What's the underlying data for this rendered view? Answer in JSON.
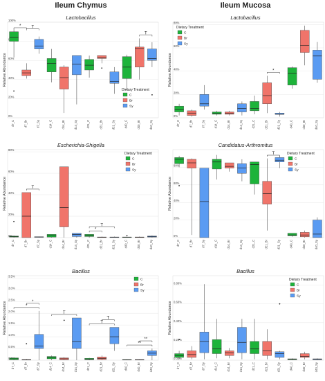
{
  "figure": {
    "column_titles": [
      "Ileum Chymus",
      "Ileum Mucosa"
    ]
  },
  "colors": {
    "C": "#1db33a",
    "Br": "#f0746a",
    "Sy": "#5a9bf2",
    "grid": "#e8e8e8",
    "box_stroke": "#333333"
  },
  "chart_data": [
    {
      "type": "box",
      "title": "Lactobacillus",
      "ylabel": "Relative Abundance",
      "yticks": [
        "0%",
        "20%",
        "40%",
        "60%",
        "80%",
        "100%"
      ],
      "ytick_values": [
        0,
        20,
        40,
        60,
        80,
        100
      ],
      "ylim": [
        0,
        100
      ],
      "legend": {
        "title": "Dietary Treatment",
        "labels": [
          "C",
          "Br",
          "Sy"
        ],
        "placement": "bottom-right"
      },
      "categories": [
        "d7_C",
        "d7_Br",
        "d7_Sy",
        "d14_C",
        "d14_Br",
        "d14_Sy",
        "d21_C",
        "d21_Br",
        "d21_Sy",
        "d40_C",
        "d40_Br",
        "d40_Sy"
      ],
      "groups": [
        "C",
        "Br",
        "Sy",
        "C",
        "Br",
        "Sy",
        "C",
        "Br",
        "Sy",
        "C",
        "Br",
        "Sy"
      ],
      "boxes": [
        {
          "min": 63,
          "q1": 80,
          "median": 84,
          "q3": 90,
          "max": 93,
          "outliers": [
            28
          ]
        },
        {
          "min": 41,
          "q1": 44,
          "median": 47,
          "q3": 50,
          "max": 57,
          "outliers": []
        },
        {
          "min": 67,
          "q1": 72,
          "median": 75,
          "q3": 82,
          "max": 85,
          "outliers": []
        },
        {
          "min": 37,
          "q1": 48,
          "median": 57,
          "q3": 62,
          "max": 72,
          "outliers": []
        },
        {
          "min": 5,
          "q1": 30,
          "median": 42,
          "q3": 53,
          "max": 55,
          "outliers": []
        },
        {
          "min": 14,
          "q1": 45,
          "median": 56,
          "q3": 65,
          "max": 65,
          "outliers": []
        },
        {
          "min": 42,
          "q1": 50,
          "median": 55,
          "q3": 61,
          "max": 65,
          "outliers": []
        },
        {
          "min": 57,
          "q1": 62,
          "median": 63,
          "q3": 65,
          "max": 65,
          "outliers": [
            52
          ]
        },
        {
          "min": 25,
          "q1": 36,
          "median": 38,
          "q3": 48,
          "max": 53,
          "outliers": []
        },
        {
          "min": 29,
          "q1": 41,
          "median": 53,
          "q3": 64,
          "max": 66,
          "outliers": []
        },
        {
          "min": 40,
          "q1": 53,
          "median": 72,
          "q3": 74,
          "max": 83,
          "outliers": []
        },
        {
          "min": 53,
          "q1": 60,
          "median": 62,
          "q3": 72,
          "max": 79,
          "outliers": [
            24
          ]
        }
      ],
      "significance": [
        {
          "from": 0,
          "to": 1,
          "label": "*"
        },
        {
          "from": 1,
          "to": 2,
          "label": "T"
        },
        {
          "from": 10,
          "to": 11,
          "label": "T"
        }
      ]
    },
    {
      "type": "box",
      "title": "Lactobacillus",
      "ylabel": "Relative Abundance",
      "yticks": [
        "0%",
        "20%",
        "40%",
        "60%",
        "80%"
      ],
      "ytick_values": [
        0,
        20,
        40,
        60,
        80
      ],
      "ylim": [
        0,
        82
      ],
      "legend": {
        "title": "Dietary Treatment",
        "labels": [
          "C",
          "Br",
          "Sy"
        ],
        "placement": "top-left"
      },
      "categories": [
        "d7_C",
        "d7_Br",
        "d7_Sy",
        "d14_C",
        "d14_Br",
        "d14_Sy",
        "d21_C",
        "d21_Br",
        "d21_Sy",
        "d40_C",
        "d40_Br",
        "d40_Sy"
      ],
      "groups": [
        "C",
        "Br",
        "Sy",
        "C",
        "Br",
        "Sy",
        "C",
        "Br",
        "Sy",
        "C",
        "Br",
        "Sy"
      ],
      "boxes": [
        {
          "min": 2,
          "q1": 5,
          "median": 7,
          "q3": 10,
          "max": 12,
          "outliers": []
        },
        {
          "min": 1,
          "q1": 2,
          "median": 4,
          "q3": 6,
          "max": 7,
          "outliers": []
        },
        {
          "min": 7,
          "q1": 10,
          "median": 12,
          "q3": 20,
          "max": 28,
          "outliers": []
        },
        {
          "min": 2,
          "q1": 3,
          "median": 4,
          "q3": 5,
          "max": 6,
          "outliers": []
        },
        {
          "min": 2,
          "q1": 3,
          "median": 4,
          "q3": 5,
          "max": 6,
          "outliers": []
        },
        {
          "min": 2,
          "q1": 5,
          "median": 8,
          "q3": 12,
          "max": 14,
          "outliers": []
        },
        {
          "min": 3,
          "q1": 6,
          "median": 8,
          "q3": 14,
          "max": 19,
          "outliers": []
        },
        {
          "min": 4,
          "q1": 12,
          "median": 19,
          "q3": 30,
          "max": 36,
          "outliers": []
        },
        {
          "min": 1,
          "q1": 3,
          "median": 3,
          "q3": 4,
          "max": 5,
          "outliers": []
        },
        {
          "min": 25,
          "q1": 28,
          "median": 38,
          "q3": 43,
          "max": 44,
          "outliers": []
        },
        {
          "min": 45,
          "q1": 56,
          "median": 62,
          "q3": 75,
          "max": 79,
          "outliers": []
        },
        {
          "min": 30,
          "q1": 33,
          "median": 53,
          "q3": 58,
          "max": 65,
          "outliers": []
        }
      ],
      "significance": [
        {
          "from": 7,
          "to": 8,
          "label": "*"
        }
      ]
    },
    {
      "type": "box",
      "title": "Escherichia-Shigella",
      "ylabel": "Relative Abundance",
      "yticks": [
        "0%",
        "20%",
        "40%",
        "60%",
        "80%"
      ],
      "ytick_values": [
        0,
        20,
        40,
        60,
        80
      ],
      "ylim": [
        0,
        82
      ],
      "legend": {
        "title": "Dietary Treatment",
        "labels": [
          "C",
          "Br",
          "Sy"
        ],
        "placement": "top-right"
      },
      "categories": [
        "d7_C",
        "d7_Br",
        "d7_Sy",
        "d14_C",
        "d14_Br",
        "d14_Sy",
        "d21_C",
        "d21_Br",
        "d21_Sy",
        "d40_C",
        "d40_Br",
        "d40_Sy"
      ],
      "groups": [
        "C",
        "Br",
        "Sy",
        "C",
        "Br",
        "Sy",
        "C",
        "Br",
        "Sy",
        "C",
        "Br",
        "Sy"
      ],
      "boxes": [
        {
          "min": 0,
          "q1": 0.5,
          "median": 1,
          "q3": 1.5,
          "max": 2,
          "outliers": [
            15
          ]
        },
        {
          "min": 0,
          "q1": 0,
          "median": 20,
          "q3": 42,
          "max": 42,
          "outliers": []
        },
        {
          "min": 0,
          "q1": 0.3,
          "median": 0.6,
          "q3": 0.8,
          "max": 1,
          "outliers": []
        },
        {
          "min": 0,
          "q1": 0.5,
          "median": 1.5,
          "q3": 3,
          "max": 3,
          "outliers": []
        },
        {
          "min": 0,
          "q1": 10,
          "median": 28,
          "q3": 66,
          "max": 66,
          "outliers": []
        },
        {
          "min": 0,
          "q1": 1,
          "median": 3,
          "q3": 4,
          "max": 4,
          "outliers": []
        },
        {
          "min": 0,
          "q1": 1,
          "median": 2,
          "q3": 3,
          "max": 3,
          "outliers": []
        },
        {
          "min": 0,
          "q1": 0.2,
          "median": 0.4,
          "q3": 0.6,
          "max": 1,
          "outliers": []
        },
        {
          "min": 0,
          "q1": 0.2,
          "median": 0.4,
          "q3": 0.6,
          "max": 1,
          "outliers": []
        },
        {
          "min": 0,
          "q1": 0.2,
          "median": 0.4,
          "q3": 0.6,
          "max": 1,
          "outliers": [
            2
          ]
        },
        {
          "min": 0,
          "q1": 0.2,
          "median": 0.4,
          "q3": 0.6,
          "max": 1,
          "outliers": []
        },
        {
          "min": 0,
          "q1": 0.5,
          "median": 1,
          "q3": 1.5,
          "max": 2,
          "outliers": []
        }
      ],
      "significance": [
        {
          "from": 1,
          "to": 2,
          "label": "T"
        },
        {
          "from": 6,
          "to": 7,
          "label": "*"
        },
        {
          "from": 6,
          "to": 8,
          "label": "T"
        }
      ]
    },
    {
      "type": "box",
      "title": "Candidatus-Arthromitus",
      "ylabel": "Relative Abundance",
      "yticks": [
        "0%",
        "20%",
        "40%",
        "60%",
        "80%"
      ],
      "ytick_values": [
        0,
        20,
        40,
        60,
        80
      ],
      "ylim": [
        0,
        100
      ],
      "legend": {
        "title": "Dietary Treatment",
        "labels": [
          "C",
          "Br",
          "Sy"
        ],
        "placement": "top-right"
      },
      "categories": [
        "d7_C",
        "d7_Br",
        "d7_Sy",
        "d14_C",
        "d14_Br",
        "d14_Sy",
        "d21_C",
        "d21_Br",
        "d21_Sy",
        "d40_C",
        "d40_Br",
        "d40_Sy"
      ],
      "groups": [
        "C",
        "Br",
        "Sy",
        "C",
        "Br",
        "Sy",
        "C",
        "Br",
        "Sy",
        "C",
        "Br",
        "Sy"
      ],
      "boxes": [
        {
          "min": 80,
          "q1": 84,
          "median": 89,
          "q3": 91,
          "max": 93,
          "outliers": [
            59
          ]
        },
        {
          "min": 3,
          "q1": 79,
          "median": 85,
          "q3": 89,
          "max": 90,
          "outliers": []
        },
        {
          "min": 0,
          "q1": 0,
          "median": 41,
          "q3": 79,
          "max": 79,
          "outliers": []
        },
        {
          "min": 66,
          "q1": 78,
          "median": 86,
          "q3": 89,
          "max": 94,
          "outliers": []
        },
        {
          "min": 75,
          "q1": 79,
          "median": 81,
          "q3": 85,
          "max": 85,
          "outliers": []
        },
        {
          "min": 64,
          "q1": 73,
          "median": 79,
          "q3": 84,
          "max": 89,
          "outliers": []
        },
        {
          "min": 49,
          "q1": 61,
          "median": 83,
          "q3": 86,
          "max": 86,
          "outliers": []
        },
        {
          "min": 8,
          "q1": 38,
          "median": 50,
          "q3": 64,
          "max": 90,
          "outliers": []
        },
        {
          "min": 79,
          "q1": 86,
          "median": 88,
          "q3": 91,
          "max": 93,
          "outliers": []
        },
        {
          "min": 1,
          "q1": 2,
          "median": 3,
          "q3": 5,
          "max": 5,
          "outliers": []
        },
        {
          "min": 0,
          "q1": 1,
          "median": 3,
          "q3": 6,
          "max": 8,
          "outliers": []
        },
        {
          "min": 0,
          "q1": 0,
          "median": 4,
          "q3": 20,
          "max": 23,
          "outliers": []
        }
      ],
      "significance": [
        {
          "from": 7,
          "to": 8,
          "label": "T"
        }
      ]
    },
    {
      "type": "box",
      "title": "Bacillus",
      "ylabel": "Relative Abundance",
      "yticks": [
        "0.0%",
        "0.5%",
        "1.0%",
        "1.5%",
        "2.0%",
        "2.5%",
        "3.0%",
        "3.5%"
      ],
      "ytick_values": [
        0,
        0.5,
        1.0,
        1.5,
        2.0,
        2.5,
        3.0,
        3.5
      ],
      "ylim": [
        0,
        3.6
      ],
      "legend": {
        "title": "",
        "labels": [
          "C",
          "Br",
          "Sy"
        ],
        "placement": "top-right"
      },
      "categories": [
        "d7_C",
        "d7_Br",
        "d7_Sy",
        "d14_C",
        "d14_Br",
        "d14_Sy",
        "d21_C",
        "d21_Br",
        "d21_Sy",
        "d40_C",
        "d40_Br",
        "d40_Sy"
      ],
      "groups": [
        "C",
        "Br",
        "Sy",
        "C",
        "Br",
        "Sy",
        "C",
        "Br",
        "Sy",
        "C",
        "Br",
        "Sy"
      ],
      "boxes": [
        {
          "min": 0,
          "q1": 0.02,
          "median": 0.06,
          "q3": 0.1,
          "max": 0.12,
          "outliers": []
        },
        {
          "min": 0,
          "q1": 0.01,
          "median": 0.02,
          "q3": 0.03,
          "max": 0.05,
          "outliers": [
            0.7
          ]
        },
        {
          "min": 0,
          "q1": 0.5,
          "median": 0.6,
          "q3": 1.1,
          "max": 2.1,
          "outliers": []
        },
        {
          "min": 0,
          "q1": 0.06,
          "median": 0.12,
          "q3": 0.16,
          "max": 0.2,
          "outliers": []
        },
        {
          "min": 0,
          "q1": 0.02,
          "median": 0.06,
          "q3": 0.1,
          "max": 0.13,
          "outliers": [
            1.7
          ]
        },
        {
          "min": 0,
          "q1": 0.5,
          "median": 0.8,
          "q3": 1.8,
          "max": 1.8,
          "outliers": []
        },
        {
          "min": 0,
          "q1": 0.02,
          "median": 0.05,
          "q3": 0.08,
          "max": 0.1,
          "outliers": []
        },
        {
          "min": 0,
          "q1": 0.03,
          "median": 0.08,
          "q3": 0.14,
          "max": 0.2,
          "outliers": []
        },
        {
          "min": 0.4,
          "q1": 0.7,
          "median": 1.0,
          "q3": 1.4,
          "max": 1.4,
          "outliers": []
        },
        {
          "min": 0,
          "q1": 0.01,
          "median": 0.02,
          "q3": 0.03,
          "max": 0.04,
          "outliers": []
        },
        {
          "min": 0,
          "q1": 0.01,
          "median": 0.02,
          "q3": 0.03,
          "max": 0.04,
          "outliers": []
        },
        {
          "min": 0,
          "q1": 0.2,
          "median": 0.3,
          "q3": 0.4,
          "max": 0.5,
          "outliers": []
        }
      ],
      "significance": [
        {
          "from": 0,
          "to": 2,
          "label": "*"
        },
        {
          "from": 1,
          "to": 2,
          "label": "*"
        },
        {
          "from": 3,
          "to": 5,
          "label": "T"
        },
        {
          "from": 6,
          "to": 8,
          "label": "T"
        },
        {
          "from": 7,
          "to": 8,
          "label": "T"
        },
        {
          "from": 9,
          "to": 11,
          "label": "**"
        },
        {
          "from": 10,
          "to": 11,
          "label": "**"
        }
      ]
    },
    {
      "type": "box",
      "title": "Bacillus",
      "ylabel": "Relative Abundance",
      "yticks": [
        "0.00%",
        "0.20%",
        "0.40%",
        "0.60%",
        "0.80%"
      ],
      "ytick_values": [
        0,
        0.2,
        0.4,
        0.6,
        0.8
      ],
      "ylim": [
        0,
        0.9
      ],
      "legend": {
        "title": "Dietary Treatment",
        "labels": [
          "C",
          "Br",
          "Sy"
        ],
        "placement": "top-right"
      },
      "categories": [
        "d7_C",
        "d7_Br",
        "d7_Sy",
        "d14_C",
        "d14_Br",
        "d14_Sy",
        "d21_C",
        "d21_Br",
        "d21_Sy",
        "d40_C",
        "d40_Br",
        "d40_Sy"
      ],
      "groups": [
        "C",
        "Br",
        "Sy",
        "C",
        "Br",
        "Sy",
        "C",
        "Br",
        "Sy",
        "C",
        "Br",
        "Sy"
      ],
      "boxes": [
        {
          "min": 0.01,
          "q1": 0.03,
          "median": 0.05,
          "q3": 0.07,
          "max": 0.1,
          "outliers": [
            0.22
          ]
        },
        {
          "min": 0.01,
          "q1": 0.03,
          "median": 0.06,
          "q3": 0.1,
          "max": 0.15,
          "outliers": []
        },
        {
          "min": 0.01,
          "q1": 0.08,
          "median": 0.2,
          "q3": 0.3,
          "max": 0.81,
          "outliers": []
        },
        {
          "min": 0.02,
          "q1": 0.07,
          "median": 0.12,
          "q3": 0.22,
          "max": 0.44,
          "outliers": []
        },
        {
          "min": 0.02,
          "q1": 0.05,
          "median": 0.08,
          "q3": 0.1,
          "max": 0.13,
          "outliers": []
        },
        {
          "min": 0.01,
          "q1": 0.08,
          "median": 0.19,
          "q3": 0.35,
          "max": 0.44,
          "outliers": []
        },
        {
          "min": 0.01,
          "q1": 0.07,
          "median": 0.12,
          "q3": 0.2,
          "max": 0.44,
          "outliers": []
        },
        {
          "min": 0.01,
          "q1": 0.05,
          "median": 0.1,
          "q3": 0.2,
          "max": 0.33,
          "outliers": []
        },
        {
          "min": 0.01,
          "q1": 0.03,
          "median": 0.07,
          "q3": 0.09,
          "max": 0.1,
          "outliers": [
            0.6
          ]
        },
        {
          "min": 0,
          "q1": 0.005,
          "median": 0.01,
          "q3": 0.015,
          "max": 0.02,
          "outliers": []
        },
        {
          "min": 0.01,
          "q1": 0.03,
          "median": 0.04,
          "q3": 0.07,
          "max": 0.09,
          "outliers": []
        },
        {
          "min": 0,
          "q1": 0.005,
          "median": 0.01,
          "q3": 0.015,
          "max": 0.02,
          "outliers": []
        }
      ],
      "significance": []
    }
  ]
}
